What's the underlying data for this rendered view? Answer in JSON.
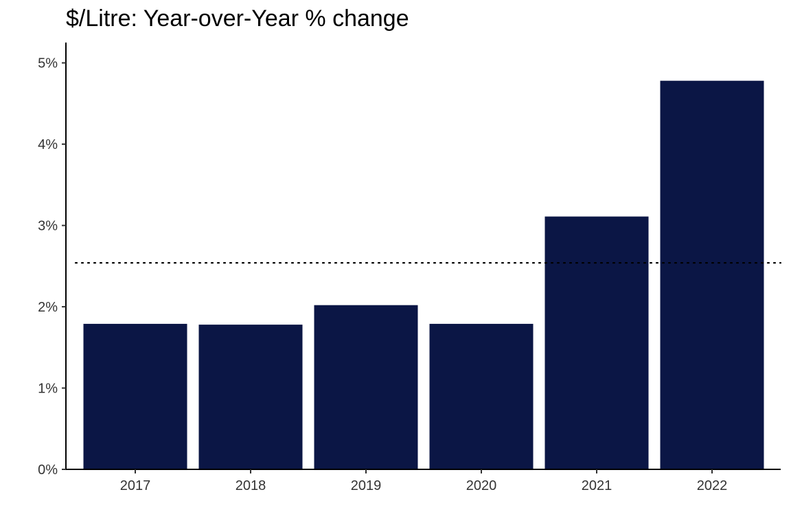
{
  "chart_data": {
    "type": "bar",
    "title": "$/Litre: Year-over-Year % change",
    "xlabel": "",
    "ylabel": "",
    "categories": [
      "2017",
      "2018",
      "2019",
      "2020",
      "2021",
      "2022"
    ],
    "values": [
      1.79,
      1.78,
      2.02,
      1.79,
      3.11,
      4.78
    ],
    "y_unit": "%",
    "ylim": [
      0,
      5.25
    ],
    "y_ticks": [
      0,
      1,
      2,
      3,
      4,
      5
    ],
    "y_tick_labels": [
      "0%",
      "1%",
      "2%",
      "3%",
      "4%",
      "5%"
    ],
    "reference_line": {
      "value": 2.54,
      "style": "dotted"
    },
    "grid": false,
    "legend": "none",
    "bar_color": "#0b1645"
  }
}
